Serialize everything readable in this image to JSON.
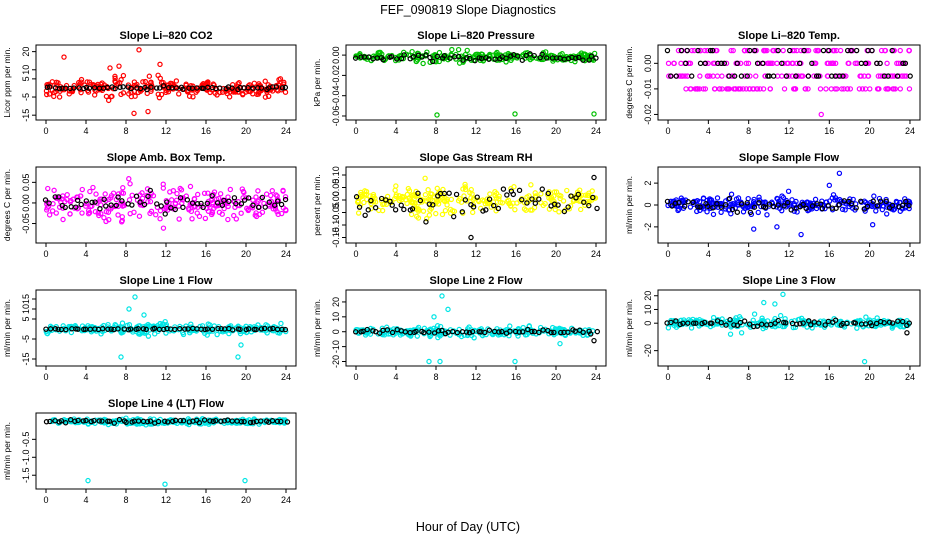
{
  "main_title": "FEF_090819  Slope Diagnostics",
  "xlabel": "Hour of Day (UTC)",
  "x_ticks": [
    "0",
    "4",
    "8",
    "12",
    "16",
    "20",
    "24"
  ],
  "chart_data": [
    {
      "id": "co2",
      "type": "scatter",
      "title": "Slope Li–820 CO2",
      "ylabel": "Licor ppm per min.",
      "ylim": [
        -16,
        22
      ],
      "yticks": [
        -15,
        -5,
        5,
        10,
        20
      ],
      "ytick_labels": [
        "-15",
        "-5",
        "5",
        "10",
        "20"
      ],
      "color": "#ff0000",
      "series": [
        {
          "color": "#ff0000",
          "spread": 4,
          "outlier": [
            [
              1.8,
              17
            ],
            [
              6.4,
              11
            ],
            [
              7.3,
              12
            ],
            [
              8.8,
              -14
            ],
            [
              9.3,
              21
            ],
            [
              10.2,
              -13
            ],
            [
              11.4,
              13
            ]
          ]
        },
        {
          "color": "#000000",
          "spread": 0.6
        }
      ]
    },
    {
      "id": "pressure",
      "type": "scatter",
      "title": "Slope Li–820 Pressure",
      "ylabel": "kPa per min.",
      "ylim": [
        -0.061,
        0.007
      ],
      "yticks": [
        -0.06,
        -0.04,
        -0.02,
        0.0
      ],
      "ytick_labels": [
        "-0.06",
        "-0.04",
        "-0.02",
        "0.00"
      ],
      "color": "#00c000",
      "series": [
        {
          "color": "#00c000",
          "spread": 0.004,
          "center": -0.002,
          "outlier": [
            [
              8.1,
              -0.059
            ],
            [
              15.9,
              -0.058
            ],
            [
              23.8,
              -0.058
            ]
          ]
        },
        {
          "color": "#000000",
          "spread": 0.003,
          "center": -0.002
        }
      ]
    },
    {
      "id": "temp",
      "type": "scatter",
      "title": "Slope Li–820 Temp.",
      "ylabel": "degrees C per min.",
      "ylim": [
        -0.021,
        0.006
      ],
      "yticks": [
        -0.02,
        -0.01,
        0.0
      ],
      "ytick_labels": [
        "-0.02",
        "-0.01",
        "0.00"
      ],
      "color": "#ff00ff",
      "series": [
        {
          "color": "#ff00ff",
          "levels": [
            0.005,
            0.0,
            -0.005,
            -0.01
          ],
          "outlier": [
            [
              15.2,
              -0.02
            ],
            [
              3.5,
              -0.01
            ]
          ]
        },
        {
          "color": "#000000",
          "levels": [
            0.0,
            -0.005,
            0.005
          ]
        }
      ]
    },
    {
      "id": "ambbox",
      "type": "scatter",
      "title": "Slope Amb. Box Temp.",
      "ylabel": "degrees C per min.",
      "ylim": [
        -0.09,
        0.08
      ],
      "yticks": [
        -0.05,
        0.0,
        0.05
      ],
      "ytick_labels": [
        "-0.05",
        "0.00",
        "0.05"
      ],
      "color": "#ff00ff",
      "series": [
        {
          "color": "#ff00ff",
          "spread": 0.035
        },
        {
          "color": "#000000",
          "spread": 0.018
        }
      ]
    },
    {
      "id": "rh",
      "type": "scatter",
      "title": "Slope Gas Stream RH",
      "ylabel": "percent per min.",
      "ylim": [
        -0.16,
        0.12
      ],
      "yticks": [
        -0.15,
        -0.1,
        -0.05,
        0.0,
        0.05,
        0.1
      ],
      "ytick_labels": [
        "-0.15",
        "-0.10",
        "-0.05",
        "0.00",
        "0.05",
        "0.10"
      ],
      "color": "#ffff00",
      "series": [
        {
          "color": "#ffff00",
          "spread": 0.04
        },
        {
          "color": "#000000",
          "spread": 0.05,
          "outlier": [
            [
              11.5,
              -0.15
            ],
            [
              23.8,
              0.09
            ]
          ]
        }
      ]
    },
    {
      "id": "sample",
      "type": "scatter",
      "title": "Slope Sample Flow",
      "ylabel": "ml/min per min.",
      "ylim": [
        -3.2,
        3.2
      ],
      "yticks": [
        -2,
        0,
        2
      ],
      "ytick_labels": [
        "-2",
        "0",
        "2"
      ],
      "color": "#0000ff",
      "series": [
        {
          "color": "#0000ff",
          "spread": 0.6,
          "outlier": [
            [
              17,
              2.9
            ],
            [
              13.2,
              -2.7
            ],
            [
              16,
              1.8
            ],
            [
              8.5,
              -2.2
            ],
            [
              20.3,
              -1.8
            ],
            [
              10.8,
              -2
            ]
          ]
        },
        {
          "color": "#000000",
          "spread": 0.4
        }
      ]
    },
    {
      "id": "line1",
      "type": "scatter",
      "title": "Slope Line 1 Flow",
      "ylabel": "ml/min per min.",
      "ylim": [
        -17,
        18
      ],
      "yticks": [
        -15,
        -5,
        5,
        10,
        15
      ],
      "ytick_labels": [
        "-15",
        "-5",
        "5",
        "10",
        "15"
      ],
      "color": "#00e5e5",
      "series": [
        {
          "color": "#00e5e5",
          "spread": 2.2,
          "outlier": [
            [
              8.9,
              16
            ],
            [
              7.5,
              -14
            ],
            [
              19.2,
              -14
            ],
            [
              19.5,
              -8
            ],
            [
              8.3,
              10
            ],
            [
              9.8,
              7
            ]
          ]
        },
        {
          "color": "#000000",
          "spread": 0.3
        }
      ]
    },
    {
      "id": "line2",
      "type": "scatter",
      "title": "Slope Line 2 Flow",
      "ylabel": "ml/min per min.",
      "ylim": [
        -21,
        26
      ],
      "yticks": [
        -20,
        -10,
        0,
        10,
        20
      ],
      "ytick_labels": [
        "-20",
        "-10",
        "0",
        "10",
        "20"
      ],
      "color": "#00e5e5",
      "series": [
        {
          "color": "#00e5e5",
          "spread": 2.5,
          "outlier": [
            [
              8.6,
              24
            ],
            [
              7.3,
              -20
            ],
            [
              8.4,
              -20
            ],
            [
              15.9,
              -20
            ],
            [
              20.4,
              -8
            ],
            [
              9.2,
              15
            ],
            [
              7.8,
              10
            ]
          ]
        },
        {
          "color": "#000000",
          "spread": 1.2,
          "outlier": [
            [
              23.8,
              -6
            ]
          ]
        }
      ]
    },
    {
      "id": "line3",
      "type": "scatter",
      "title": "Slope Line 3 Flow",
      "ylabel": "ml/min per min.",
      "ylim": [
        -29,
        22
      ],
      "yticks": [
        -20,
        0,
        10,
        20
      ],
      "ytick_labels": [
        "-20",
        "0",
        "10",
        "20"
      ],
      "color": "#00e5e5",
      "series": [
        {
          "color": "#00e5e5",
          "spread": 3,
          "outlier": [
            [
              11.4,
              21
            ],
            [
              10.6,
              14
            ],
            [
              19.5,
              -28
            ],
            [
              6.2,
              -8
            ],
            [
              7.3,
              -7
            ],
            [
              9.5,
              15
            ]
          ]
        },
        {
          "color": "#000000",
          "spread": 1.8,
          "outlier": [
            [
              23.7,
              -7
            ]
          ]
        }
      ]
    },
    {
      "id": "line4",
      "type": "scatter",
      "title": "Slope Line 4 (LT) Flow",
      "ylabel": "ml/min per min.",
      "ylim": [
        -1.8,
        0.15
      ],
      "yticks": [
        -1.5,
        -1.0,
        -0.5
      ],
      "ytick_labels": [
        "-1.5",
        "-1.0",
        "-0.5"
      ],
      "color": "#00e5e5",
      "series": [
        {
          "color": "#00e5e5",
          "spread": 0.06,
          "outlier": [
            [
              4.2,
              -1.65
            ],
            [
              11.9,
              -1.75
            ],
            [
              19.9,
              -1.65
            ]
          ]
        },
        {
          "color": "#000000",
          "spread": 0.04
        }
      ]
    }
  ]
}
